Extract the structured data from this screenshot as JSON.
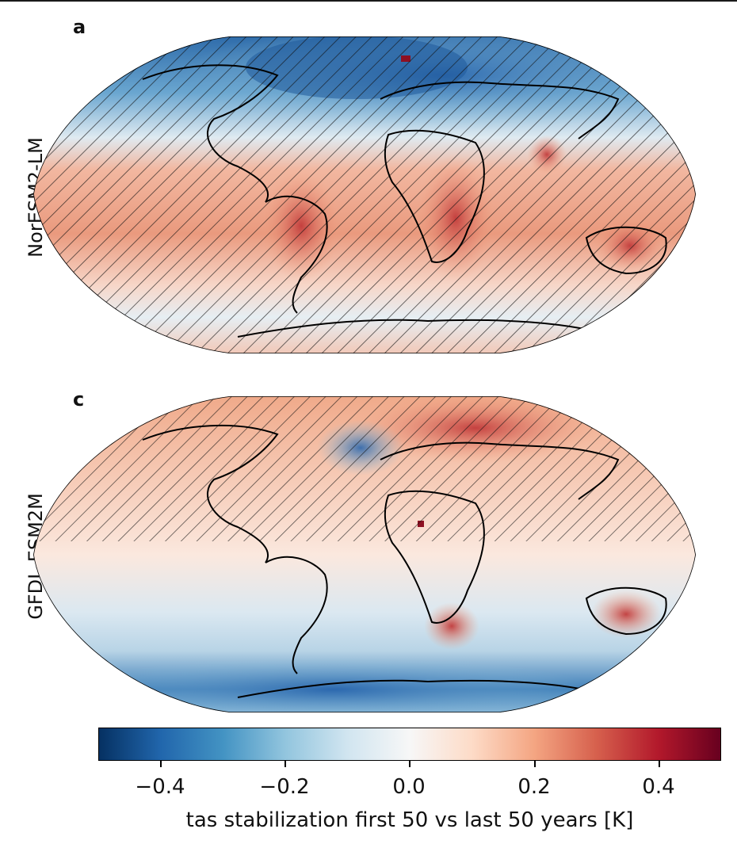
{
  "panels": [
    {
      "letter": "a",
      "model": "NorESM2-LM"
    },
    {
      "letter": "c",
      "model": "GFDL-ESM2M"
    }
  ],
  "colorbar": {
    "label": "tas stabilization first 50 vs last 50 years [K]",
    "ticks": [
      "−0.4",
      "−0.2",
      "0.0",
      "0.2",
      "0.4"
    ],
    "tick_values": [
      -0.4,
      -0.2,
      0.0,
      0.2,
      0.4
    ],
    "range": [
      -0.5,
      0.5
    ],
    "colormap": "RdBu_r",
    "colors": [
      "#053061",
      "#2166ac",
      "#4393c3",
      "#92c5de",
      "#d1e5f0",
      "#f7f7f7",
      "#fddbc7",
      "#f4a582",
      "#d6604d",
      "#b2182b",
      "#67001f"
    ]
  },
  "map": {
    "projection": "Robinson",
    "hatching": "significance",
    "coastline_color": "#000000"
  }
}
